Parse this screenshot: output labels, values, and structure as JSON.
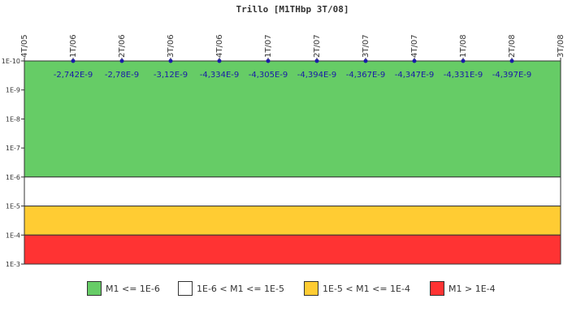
{
  "chart_data": {
    "type": "line",
    "title": "Trillo [M1THbp 3T/08]",
    "xlabel": "",
    "ylabel": "",
    "x_ticks": [
      "4T/05",
      "1T/06",
      "2T/06",
      "3T/06",
      "4T/06",
      "1T/07",
      "2T/07",
      "3T/07",
      "4T/07",
      "1T/08",
      "2T/08",
      "3T/08"
    ],
    "y_scale": "log",
    "y_ticks": [
      "1E-10",
      "1E-9",
      "1E-8",
      "1E-7",
      "1E-6",
      "1E-5",
      "1E-4",
      "1E-3"
    ],
    "series": [
      {
        "x": [
          "1T/06",
          "2T/06",
          "3T/06",
          "4T/06",
          "1T/07",
          "2T/07",
          "3T/07",
          "4T/07",
          "1T/08",
          "2T/08"
        ],
        "values": [
          -2.742e-09,
          -2.78e-09,
          -3.12e-09,
          -4.334e-09,
          -4.305e-09,
          -4.394e-09,
          -4.367e-09,
          -4.347e-09,
          -4.331e-09,
          -4.397e-09
        ],
        "labels": [
          "-2,742E-9",
          "-2,78E-9",
          "-3,12E-9",
          "-4,334E-9",
          "-4,305E-9",
          "-4,394E-9",
          "-4,367E-9",
          "-4,347E-9",
          "-4,331E-9",
          "-4,397E-9"
        ],
        "color": "#1a1aa8"
      }
    ],
    "bands": [
      {
        "from": "1E-10",
        "to": "1E-6",
        "color": "#66cc66",
        "label": "M1 <= 1E-6"
      },
      {
        "from": "1E-6",
        "to": "1E-5",
        "color": "#ffffff",
        "label": "1E-6 < M1 <= 1E-5"
      },
      {
        "from": "1E-5",
        "to": "1E-4",
        "color": "#ffcc33",
        "label": "1E-5 < M1 <= 1E-4"
      },
      {
        "from": "1E-4",
        "to": "1E-3",
        "color": "#ff3333",
        "label": "M1 > 1E-4"
      }
    ],
    "grid": false,
    "legend_position": "bottom"
  }
}
